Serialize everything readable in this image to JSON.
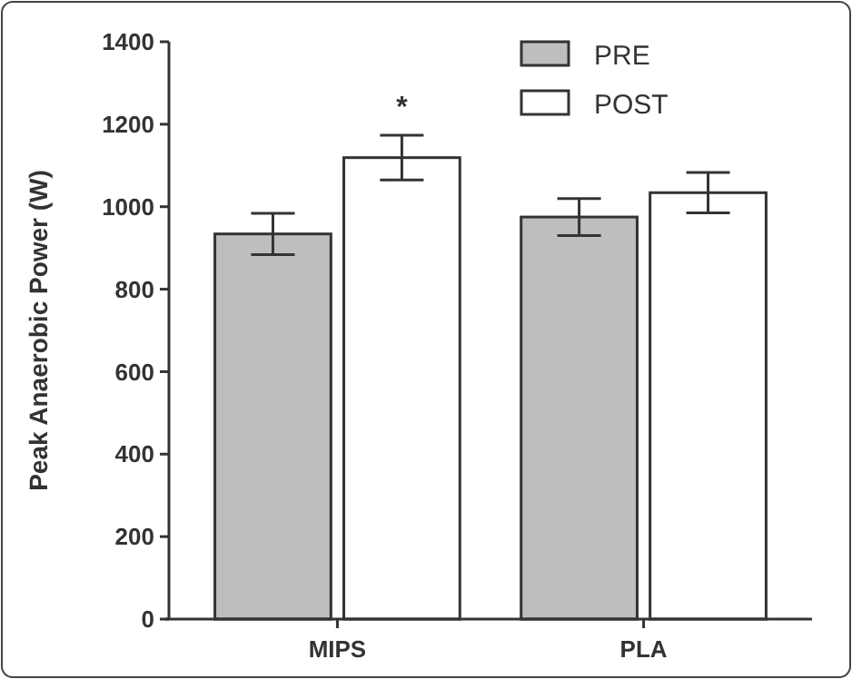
{
  "chart_data": {
    "type": "bar",
    "ylabel": "Peak Anaerobic Power (W)",
    "categories": [
      "MIPS",
      "PLA"
    ],
    "series": [
      {
        "name": "PRE",
        "color": "#bcbec0",
        "values": [
          934,
          975
        ],
        "errors": [
          50,
          45
        ]
      },
      {
        "name": "POST",
        "color": "#ffffff",
        "values": [
          1119,
          1034
        ],
        "errors": [
          54,
          49
        ]
      }
    ],
    "ylim": [
      0,
      1400
    ],
    "yticks": [
      0,
      200,
      400,
      600,
      800,
      1000,
      1200,
      1400
    ],
    "legend": "top right",
    "grid": false,
    "annotations": [
      "*"
    ]
  }
}
